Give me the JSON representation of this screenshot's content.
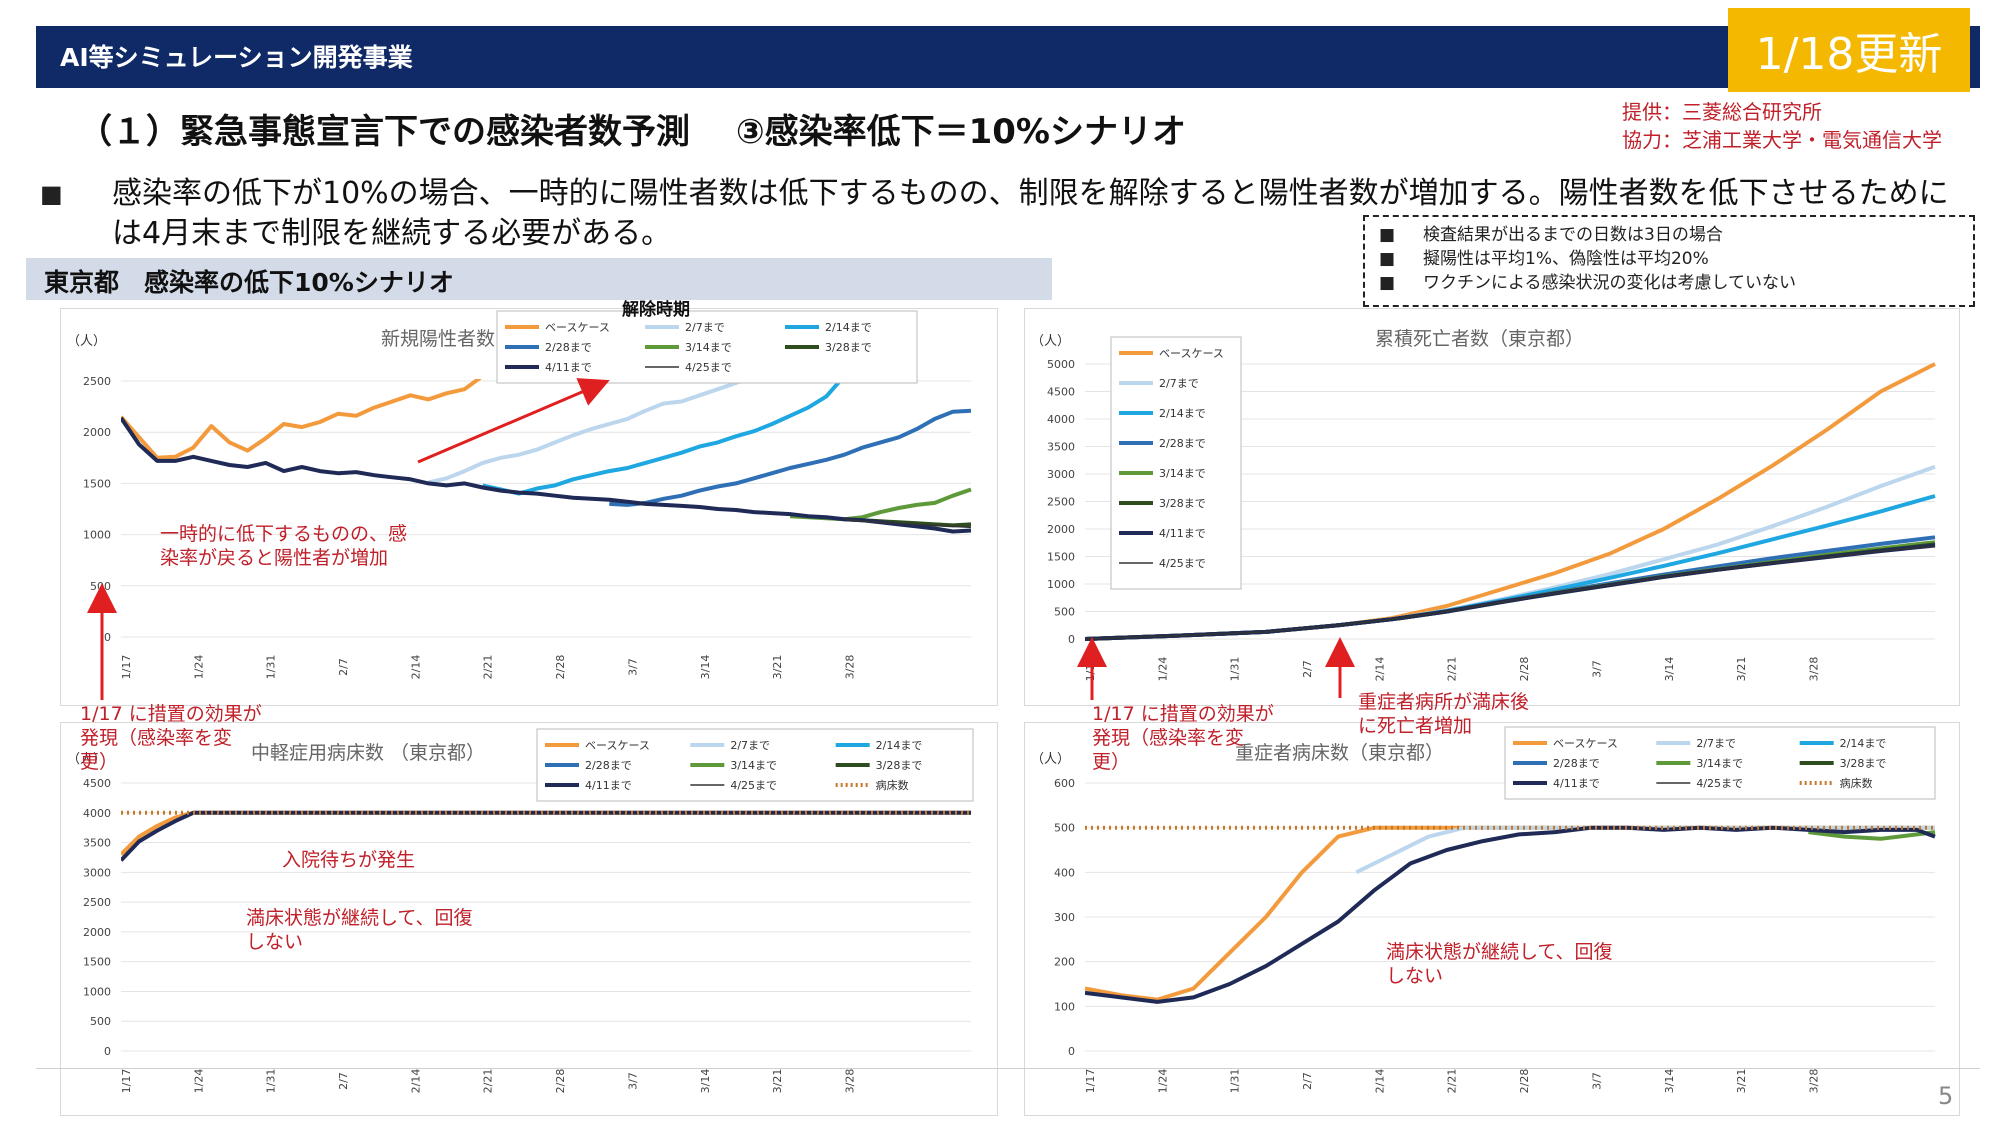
{
  "header": {
    "title": "AI等シミュレーション開発事業",
    "badge": "1/18更新"
  },
  "section": {
    "title": "（１）緊急事態宣言下での感染者数予測　 ③感染率低下＝10%シナリオ"
  },
  "provider": {
    "line1": "提供：三菱総合研究所",
    "line2": "協力：芝浦工業大学・電気通信大学"
  },
  "bullet": {
    "mark": "■",
    "text": "感染率の低下が10%の場合、一時的に陽性者数は低下するものの、制限を解除すると陽性者数が増加する。陽性者数を低下させるためには4月末まで制限を継続する必要がある。"
  },
  "notes": [
    {
      "mark": "■",
      "text": "検査結果が出るまでの日数は3日の場合"
    },
    {
      "mark": "■",
      "text": "擬陽性は平均1%、偽陰性は平均20%"
    },
    {
      "mark": "■",
      "text": "ワクチンによる感染状況の変化は考慮していない"
    }
  ],
  "region_tab": "東京都　感染率の低下10%シナリオ",
  "annotations": {
    "dip": "一時的に低下するものの、感\n染率が戻ると陽性者が増加",
    "measure_left": "1/17 に措置の効果が\n発現（感染率を変\n更）",
    "measure_right": "1/17 に措置の効果が\n発現（感染率を変\n更）",
    "severe_full": "重症者病所が満床後\nに死亡者増加",
    "waiting": "入院待ちが発生",
    "full_mid": "満床状態が継続して、回復\nしない",
    "full_severe": "満床状態が継続して、回復\nしない",
    "release": "解除時期"
  },
  "page_number": "5",
  "colors": {
    "base": "#f39a3c",
    "feb7": "#bcd6ee",
    "feb14": "#1ea7e1",
    "feb28": "#2f6fb6",
    "mar14": "#5e9a3a",
    "mar28": "#2e4d1e",
    "apr11": "#1f2a56",
    "apr25": "#333333",
    "beds": "#c47a2a",
    "header": "#0f2a66",
    "badge": "#f5b800",
    "accent": "#c0202a"
  },
  "chart_data": [
    {
      "id": "new_cases",
      "type": "line",
      "title": "新規陽性者数（東京都）",
      "unit_label": "（人）",
      "ylim": [
        0,
        2500
      ],
      "yticks": [
        "0",
        "500",
        "1000",
        "1500",
        "2000",
        "2500"
      ],
      "xticks": [
        "1/17",
        "1/24",
        "1/31",
        "2/7",
        "2/14",
        "2/21",
        "2/28",
        "3/7",
        "3/14",
        "3/21",
        "3/28"
      ],
      "legend": [
        "ベースケース",
        "2/7まで",
        "2/14まで",
        "2/28まで",
        "3/14まで",
        "3/28まで",
        "4/11まで",
        "4/25まで"
      ],
      "series": [
        {
          "name": "ベースケース",
          "x": [
            0,
            2,
            4,
            6,
            8,
            10,
            12,
            14,
            16,
            18,
            20,
            22,
            24,
            26,
            28,
            30,
            32,
            34,
            36,
            38,
            40
          ],
          "values": [
            2150,
            1950,
            1750,
            1760,
            1850,
            2060,
            1900,
            1820,
            1940,
            2080,
            2050,
            2100,
            2180,
            2160,
            2240,
            2300,
            2360,
            2320,
            2380,
            2420,
            2550
          ]
        },
        {
          "name": "2/7まで",
          "x": [
            34,
            36,
            38,
            40,
            42,
            44,
            46,
            48,
            50,
            52,
            54,
            56,
            58,
            60,
            62,
            64,
            66,
            68,
            70,
            72,
            74
          ],
          "values": [
            1510,
            1550,
            1620,
            1700,
            1750,
            1780,
            1830,
            1900,
            1970,
            2030,
            2080,
            2130,
            2210,
            2280,
            2300,
            2360,
            2420,
            2480,
            2550,
            2620,
            2700
          ]
        },
        {
          "name": "2/14まで",
          "x": [
            40,
            42,
            44,
            46,
            48,
            50,
            52,
            54,
            56,
            58,
            60,
            62,
            64,
            66,
            68,
            70,
            72,
            74,
            76,
            78,
            80
          ],
          "values": [
            1480,
            1440,
            1400,
            1450,
            1480,
            1540,
            1580,
            1620,
            1650,
            1700,
            1750,
            1800,
            1860,
            1900,
            1960,
            2010,
            2080,
            2160,
            2240,
            2350,
            2550
          ]
        },
        {
          "name": "2/28まで",
          "x": [
            54,
            56,
            58,
            60,
            62,
            64,
            66,
            68,
            70,
            72,
            74,
            76,
            78,
            80,
            82,
            84,
            86,
            88,
            90,
            92,
            94
          ],
          "values": [
            1300,
            1290,
            1310,
            1350,
            1380,
            1430,
            1470,
            1500,
            1550,
            1600,
            1650,
            1690,
            1730,
            1780,
            1850,
            1900,
            1950,
            2030,
            2130,
            2200,
            2210
          ]
        },
        {
          "name": "3/14まで",
          "x": [
            74,
            76,
            78,
            80,
            82,
            84,
            86,
            88,
            90,
            92,
            94
          ],
          "values": [
            1180,
            1170,
            1160,
            1150,
            1170,
            1220,
            1260,
            1290,
            1310,
            1380,
            1440
          ]
        },
        {
          "name": "3/28まで",
          "x": [
            80,
            82,
            84,
            86,
            88,
            90,
            92,
            94
          ],
          "values": [
            1150,
            1140,
            1130,
            1120,
            1110,
            1100,
            1090,
            1100
          ]
        },
        {
          "name": "4/11まで",
          "x": [
            0,
            2,
            4,
            6,
            8,
            10,
            12,
            14,
            16,
            18,
            20,
            22,
            24,
            26,
            28,
            30,
            32,
            34,
            36,
            38,
            40,
            42,
            44,
            46,
            48,
            50,
            52,
            54,
            56,
            58,
            60,
            62,
            64,
            66,
            68,
            70,
            72,
            74,
            76,
            78,
            80,
            82,
            84,
            86,
            88,
            90,
            92,
            94
          ],
          "values": [
            2140,
            1880,
            1720,
            1720,
            1760,
            1720,
            1680,
            1660,
            1700,
            1620,
            1660,
            1620,
            1600,
            1610,
            1580,
            1560,
            1540,
            1500,
            1480,
            1500,
            1460,
            1430,
            1410,
            1400,
            1380,
            1360,
            1350,
            1340,
            1320,
            1300,
            1290,
            1280,
            1270,
            1250,
            1240,
            1220,
            1210,
            1200,
            1180,
            1170,
            1150,
            1140,
            1120,
            1100,
            1080,
            1060,
            1030,
            1040
          ]
        },
        {
          "name": "4/25まで",
          "x": [
            80,
            82,
            84,
            86,
            88,
            90,
            92,
            94
          ],
          "values": [
            1150,
            1130,
            1120,
            1110,
            1100,
            1090,
            1080,
            1070
          ]
        }
      ]
    },
    {
      "id": "cumulative_deaths",
      "type": "line",
      "title": "累積死亡者数（東京都）",
      "unit_label": "（人）",
      "ylim": [
        0,
        5000
      ],
      "yticks": [
        "0",
        "500",
        "1000",
        "1500",
        "2000",
        "2500",
        "3000",
        "3500",
        "4000",
        "4500",
        "5000"
      ],
      "xticks": [
        "1/17",
        "1/24",
        "1/31",
        "2/7",
        "2/14",
        "2/21",
        "2/28",
        "3/7",
        "3/14",
        "3/21",
        "3/28"
      ],
      "legend": [
        "ベースケース",
        "2/7まで",
        "2/14まで",
        "2/28まで",
        "3/14まで",
        "3/28まで",
        "4/11まで",
        "4/25まで"
      ],
      "series": [
        {
          "name": "ベースケース",
          "x": [
            0,
            10,
            20,
            28,
            34,
            40,
            46,
            52,
            58,
            64,
            70,
            76,
            82,
            88,
            94
          ],
          "values": [
            0,
            60,
            130,
            250,
            380,
            600,
            900,
            1200,
            1550,
            2000,
            2550,
            3150,
            3800,
            4500,
            5000
          ]
        },
        {
          "name": "2/7まで",
          "x": [
            0,
            10,
            20,
            28,
            34,
            40,
            46,
            52,
            58,
            64,
            70,
            76,
            82,
            88,
            94
          ],
          "values": [
            0,
            60,
            130,
            250,
            360,
            520,
            720,
            940,
            1180,
            1450,
            1720,
            2050,
            2400,
            2780,
            3130
          ]
        },
        {
          "name": "2/14まで",
          "x": [
            0,
            10,
            20,
            28,
            34,
            40,
            46,
            52,
            58,
            64,
            70,
            76,
            82,
            88,
            94
          ],
          "values": [
            0,
            60,
            130,
            250,
            360,
            510,
            700,
            900,
            1110,
            1330,
            1560,
            1810,
            2060,
            2320,
            2600
          ]
        },
        {
          "name": "2/28まで",
          "x": [
            0,
            10,
            20,
            28,
            34,
            40,
            46,
            52,
            58,
            64,
            70,
            76,
            82,
            88,
            94
          ],
          "values": [
            0,
            60,
            130,
            250,
            360,
            500,
            680,
            850,
            1010,
            1170,
            1320,
            1470,
            1600,
            1730,
            1850
          ]
        },
        {
          "name": "3/14まで",
          "x": [
            0,
            10,
            20,
            28,
            34,
            40,
            46,
            52,
            58,
            64,
            70,
            76,
            82,
            88,
            94
          ],
          "values": [
            0,
            60,
            130,
            250,
            360,
            500,
            670,
            840,
            990,
            1140,
            1270,
            1400,
            1530,
            1650,
            1760
          ]
        },
        {
          "name": "3/28まで",
          "x": [
            0,
            10,
            20,
            28,
            34,
            40,
            46,
            52,
            58,
            64,
            70,
            76,
            82,
            88,
            94
          ],
          "values": [
            0,
            60,
            130,
            250,
            360,
            500,
            670,
            830,
            980,
            1130,
            1260,
            1380,
            1500,
            1610,
            1720
          ]
        },
        {
          "name": "4/11まで",
          "x": [
            0,
            10,
            20,
            28,
            34,
            40,
            46,
            52,
            58,
            64,
            70,
            76,
            82,
            88,
            94
          ],
          "values": [
            0,
            60,
            130,
            250,
            360,
            500,
            670,
            830,
            980,
            1130,
            1260,
            1380,
            1490,
            1600,
            1700
          ]
        },
        {
          "name": "4/25まで",
          "x": [
            0,
            10,
            20,
            28,
            34,
            40,
            46,
            52,
            58,
            64,
            70,
            76,
            82,
            88,
            94
          ],
          "values": [
            0,
            60,
            130,
            250,
            360,
            500,
            670,
            830,
            980,
            1130,
            1260,
            1380,
            1490,
            1600,
            1690
          ]
        }
      ]
    },
    {
      "id": "mild_beds",
      "type": "line",
      "title": "中軽症用病床数 （東京都）",
      "unit_label": "（人）",
      "ylim": [
        0,
        4500
      ],
      "yticks": [
        "0",
        "500",
        "1000",
        "1500",
        "2000",
        "2500",
        "3000",
        "3500",
        "4000",
        "4500"
      ],
      "xticks": [
        "1/17",
        "1/24",
        "1/31",
        "2/7",
        "2/14",
        "2/21",
        "2/28",
        "3/7",
        "3/14",
        "3/21",
        "3/28"
      ],
      "legend": [
        "ベースケース",
        "2/7まで",
        "2/14まで",
        "2/28まで",
        "3/14まで",
        "3/28まで",
        "4/11まで",
        "4/25まで",
        "病床数"
      ],
      "series": [
        {
          "name": "ベースケース",
          "x": [
            0,
            2,
            4,
            6,
            8,
            94
          ],
          "values": [
            3300,
            3600,
            3780,
            3920,
            4000,
            4000
          ]
        },
        {
          "name": "4/11まで",
          "x": [
            0,
            2,
            4,
            6,
            8,
            94
          ],
          "values": [
            3200,
            3520,
            3700,
            3860,
            4000,
            4000
          ]
        },
        {
          "name": "病床数",
          "x": [
            0,
            94
          ],
          "values": [
            4000,
            4000
          ],
          "dotted": true
        }
      ]
    },
    {
      "id": "severe_beds",
      "type": "line",
      "title": "重症者病床数（東京都）",
      "unit_label": "（人）",
      "ylim": [
        0,
        600
      ],
      "yticks": [
        "0",
        "100",
        "200",
        "300",
        "400",
        "500",
        "600"
      ],
      "xticks": [
        "1/17",
        "1/24",
        "1/31",
        "2/7",
        "2/14",
        "2/21",
        "2/28",
        "3/7",
        "3/14",
        "3/21",
        "3/28"
      ],
      "legend": [
        "ベースケース",
        "2/7まで",
        "2/14まで",
        "2/28まで",
        "3/14まで",
        "3/28まで",
        "4/11まで",
        "4/25まで",
        "病床数"
      ],
      "series": [
        {
          "name": "ベースケース",
          "x": [
            0,
            4,
            8,
            12,
            16,
            20,
            24,
            28,
            32,
            36,
            94
          ],
          "values": [
            140,
            125,
            115,
            140,
            220,
            300,
            400,
            480,
            500,
            500,
            500
          ]
        },
        {
          "name": "2/7まで",
          "x": [
            30,
            34,
            38,
            42,
            46,
            94
          ],
          "values": [
            400,
            440,
            480,
            500,
            500,
            500
          ]
        },
        {
          "name": "3/14まで",
          "x": [
            80,
            84,
            88,
            92,
            94
          ],
          "values": [
            490,
            480,
            475,
            485,
            490
          ]
        },
        {
          "name": "4/11まで",
          "x": [
            0,
            4,
            8,
            12,
            16,
            20,
            24,
            28,
            32,
            36,
            40,
            44,
            48,
            52,
            56,
            60,
            64,
            68,
            72,
            76,
            80,
            84,
            88,
            92,
            94
          ],
          "values": [
            130,
            120,
            110,
            120,
            150,
            190,
            240,
            290,
            360,
            420,
            450,
            470,
            485,
            490,
            500,
            500,
            495,
            500,
            495,
            500,
            495,
            490,
            495,
            495,
            480
          ]
        },
        {
          "name": "病床数",
          "x": [
            0,
            94
          ],
          "values": [
            500,
            500
          ],
          "dotted": true
        }
      ]
    }
  ]
}
